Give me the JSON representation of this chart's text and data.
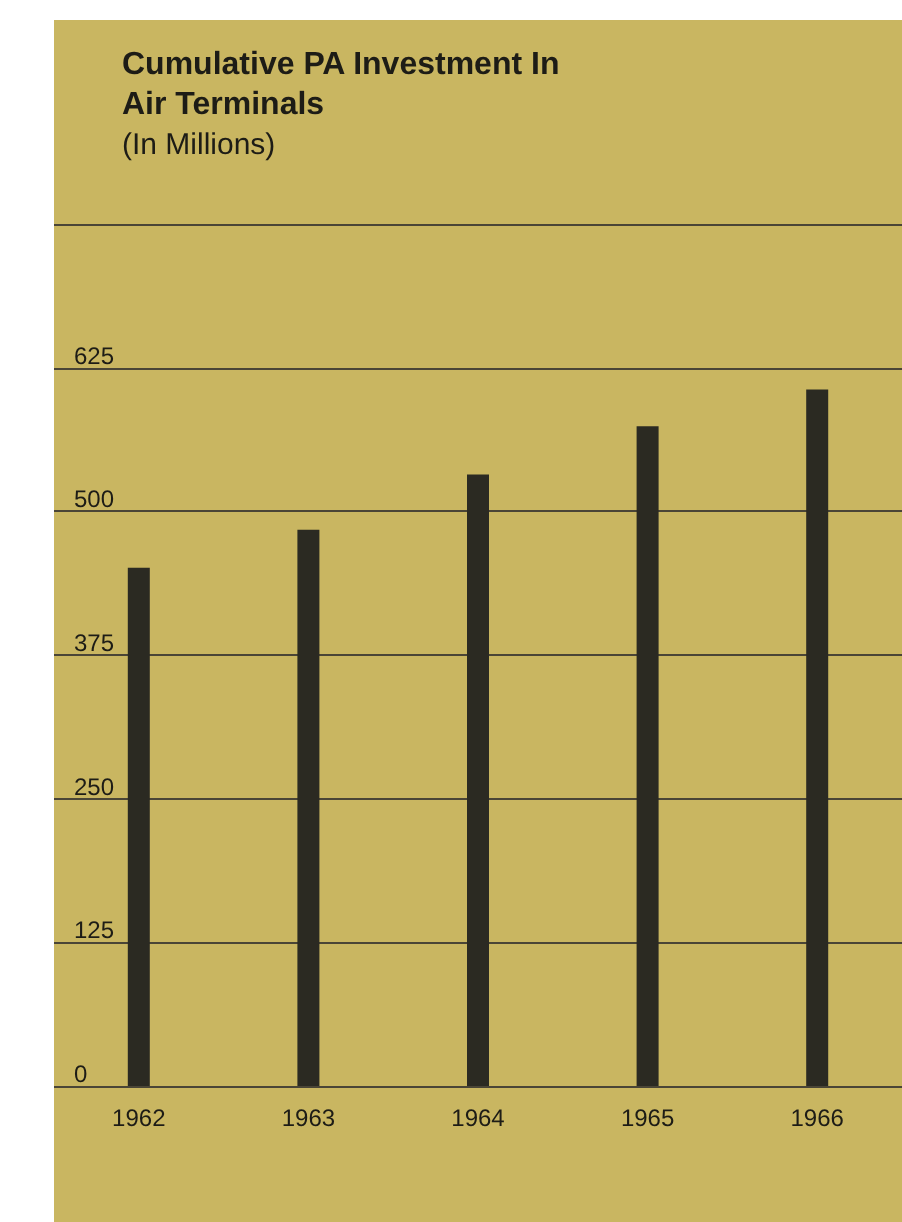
{
  "chart_data": {
    "type": "bar",
    "title": "Cumulative PA Investment In Air Terminals",
    "subtitle": "(In Millions)",
    "categories": [
      "1962",
      "1963",
      "1964",
      "1965",
      "1966"
    ],
    "values": [
      451,
      484,
      532,
      574,
      606
    ],
    "color": "#2b2a22",
    "ylim": [
      0,
      750
    ],
    "yticks": [
      0,
      125,
      250,
      375,
      500,
      625,
      {
        "value": 750,
        "label": null
      }
    ],
    "grid": "y"
  }
}
